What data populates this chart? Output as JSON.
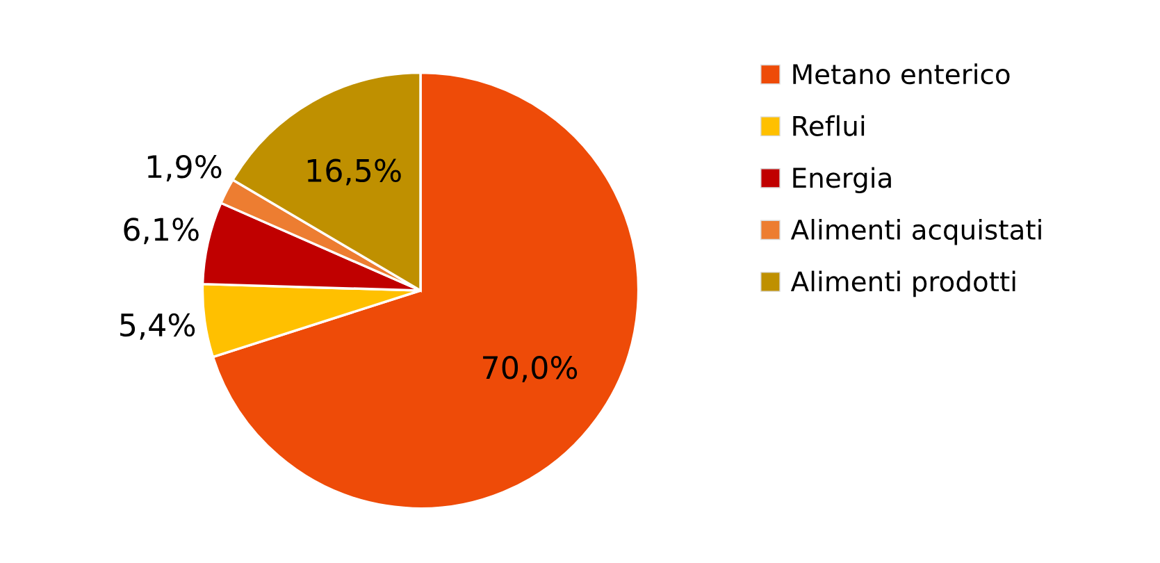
{
  "chart_data": {
    "type": "pie",
    "categories": [
      "Metano enterico",
      "Reflui",
      "Energia",
      "Alimenti acquistati",
      "Alimenti prodotti"
    ],
    "values": [
      70.0,
      5.4,
      6.1,
      1.9,
      16.5
    ],
    "value_labels": [
      "70,0%",
      "5,4%",
      "6,1%",
      "1,9%",
      "16,5%"
    ],
    "colors": [
      "#ee4b08",
      "#ffc000",
      "#c00000",
      "#ed7d31",
      "#bf9000"
    ],
    "legend": "right"
  }
}
